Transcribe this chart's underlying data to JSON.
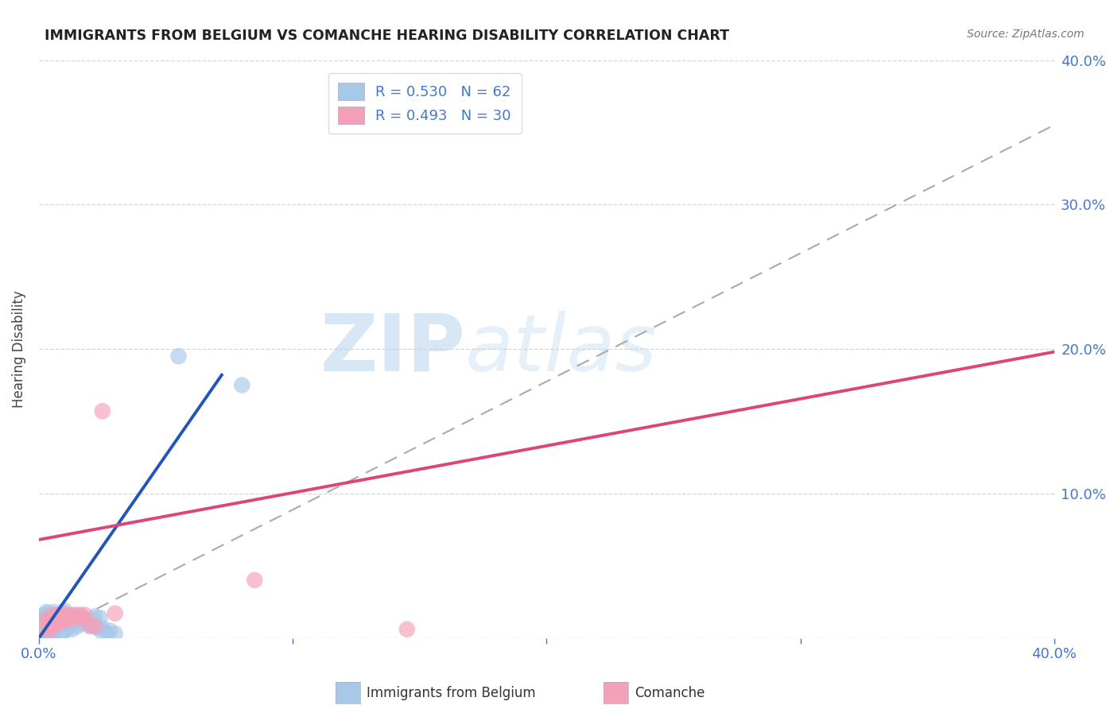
{
  "title": "IMMIGRANTS FROM BELGIUM VS COMANCHE HEARING DISABILITY CORRELATION CHART",
  "source_text": "Source: ZipAtlas.com",
  "ylabel": "Hearing Disability",
  "xlim": [
    0.0,
    0.4
  ],
  "ylim": [
    0.0,
    0.4
  ],
  "xticks": [
    0.0,
    0.1,
    0.2,
    0.3,
    0.4
  ],
  "yticks": [
    0.0,
    0.1,
    0.2,
    0.3,
    0.4
  ],
  "xticklabels": [
    "0.0%",
    "",
    "",
    "",
    "40.0%"
  ],
  "yticklabels_right": [
    "",
    "10.0%",
    "20.0%",
    "30.0%",
    "40.0%"
  ],
  "legend_r1": "R = 0.530",
  "legend_n1": "N = 62",
  "legend_r2": "R = 0.493",
  "legend_n2": "N = 30",
  "blue_color": "#A8C8E8",
  "pink_color": "#F4A0B8",
  "blue_line_color": "#2255BB",
  "pink_line_color": "#DD4477",
  "gray_dash_color": "#AAAAAA",
  "label_color": "#4477CC",
  "grid_color": "#CCCCCC",
  "blue_scatter": [
    [
      0.001,
      0.001
    ],
    [
      0.001,
      0.004
    ],
    [
      0.001,
      0.008
    ],
    [
      0.001,
      0.012
    ],
    [
      0.002,
      0.002
    ],
    [
      0.002,
      0.006
    ],
    [
      0.002,
      0.01
    ],
    [
      0.002,
      0.014
    ],
    [
      0.002,
      0.016
    ],
    [
      0.003,
      0.003
    ],
    [
      0.003,
      0.007
    ],
    [
      0.003,
      0.011
    ],
    [
      0.003,
      0.015
    ],
    [
      0.003,
      0.018
    ],
    [
      0.004,
      0.005
    ],
    [
      0.004,
      0.009
    ],
    [
      0.004,
      0.013
    ],
    [
      0.004,
      0.017
    ],
    [
      0.005,
      0.003
    ],
    [
      0.005,
      0.007
    ],
    [
      0.005,
      0.012
    ],
    [
      0.005,
      0.015
    ],
    [
      0.006,
      0.004
    ],
    [
      0.006,
      0.009
    ],
    [
      0.006,
      0.013
    ],
    [
      0.006,
      0.018
    ],
    [
      0.007,
      0.006
    ],
    [
      0.007,
      0.011
    ],
    [
      0.007,
      0.016
    ],
    [
      0.008,
      0.008
    ],
    [
      0.008,
      0.013
    ],
    [
      0.009,
      0.003
    ],
    [
      0.009,
      0.01
    ],
    [
      0.009,
      0.016
    ],
    [
      0.01,
      0.005
    ],
    [
      0.01,
      0.012
    ],
    [
      0.01,
      0.019
    ],
    [
      0.011,
      0.007
    ],
    [
      0.011,
      0.014
    ],
    [
      0.012,
      0.009
    ],
    [
      0.012,
      0.016
    ],
    [
      0.013,
      0.011
    ],
    [
      0.013,
      0.006
    ],
    [
      0.014,
      0.013
    ],
    [
      0.015,
      0.008
    ],
    [
      0.015,
      0.015
    ],
    [
      0.016,
      0.01
    ],
    [
      0.017,
      0.014
    ],
    [
      0.018,
      0.012
    ],
    [
      0.019,
      0.01
    ],
    [
      0.02,
      0.008
    ],
    [
      0.021,
      0.013
    ],
    [
      0.022,
      0.015
    ],
    [
      0.023,
      0.007
    ],
    [
      0.024,
      0.014
    ],
    [
      0.025,
      0.007
    ],
    [
      0.025,
      0.004
    ],
    [
      0.027,
      0.003
    ],
    [
      0.028,
      0.005
    ],
    [
      0.03,
      0.003
    ],
    [
      0.055,
      0.195
    ],
    [
      0.08,
      0.175
    ]
  ],
  "pink_scatter": [
    [
      0.002,
      0.007
    ],
    [
      0.003,
      0.013
    ],
    [
      0.004,
      0.005
    ],
    [
      0.004,
      0.012
    ],
    [
      0.005,
      0.009
    ],
    [
      0.005,
      0.015
    ],
    [
      0.006,
      0.008
    ],
    [
      0.006,
      0.014
    ],
    [
      0.007,
      0.01
    ],
    [
      0.007,
      0.016
    ],
    [
      0.008,
      0.011
    ],
    [
      0.008,
      0.016
    ],
    [
      0.009,
      0.012
    ],
    [
      0.009,
      0.015
    ],
    [
      0.01,
      0.014
    ],
    [
      0.01,
      0.017
    ],
    [
      0.011,
      0.013
    ],
    [
      0.012,
      0.013
    ],
    [
      0.013,
      0.015
    ],
    [
      0.014,
      0.016
    ],
    [
      0.015,
      0.014
    ],
    [
      0.016,
      0.016
    ],
    [
      0.017,
      0.014
    ],
    [
      0.018,
      0.016
    ],
    [
      0.02,
      0.009
    ],
    [
      0.022,
      0.008
    ],
    [
      0.025,
      0.157
    ],
    [
      0.03,
      0.017
    ],
    [
      0.145,
      0.006
    ],
    [
      0.085,
      0.04
    ]
  ],
  "blue_line": [
    [
      0.0,
      0.0
    ],
    [
      0.072,
      0.182
    ]
  ],
  "pink_line": [
    [
      0.0,
      0.068
    ],
    [
      0.4,
      0.198
    ]
  ],
  "gray_dash_line": [
    [
      0.0,
      0.0
    ],
    [
      0.4,
      0.355
    ]
  ]
}
